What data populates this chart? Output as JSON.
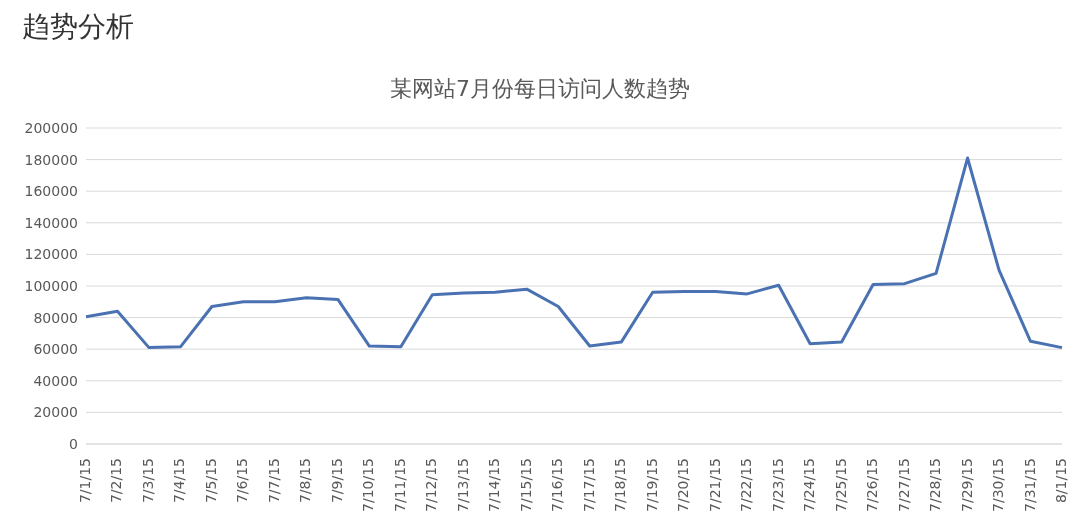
{
  "chart_data": {
    "type": "line",
    "title": "趋势分析",
    "subtitle": "某网站7月份每日访问人数趋势",
    "categories": [
      "7/1/15",
      "7/2/15",
      "7/3/15",
      "7/4/15",
      "7/5/15",
      "7/6/15",
      "7/7/15",
      "7/8/15",
      "7/9/15",
      "7/10/15",
      "7/11/15",
      "7/12/15",
      "7/13/15",
      "7/14/15",
      "7/15/15",
      "7/16/15",
      "7/17/15",
      "7/18/15",
      "7/19/15",
      "7/20/15",
      "7/21/15",
      "7/22/15",
      "7/23/15",
      "7/24/15",
      "7/25/15",
      "7/26/15",
      "7/27/15",
      "7/28/15",
      "7/29/15",
      "7/30/15",
      "7/31/15",
      "8/1/15"
    ],
    "series": [
      {
        "color": "#4a72b2",
        "values": [
          80500,
          84000,
          61000,
          61500,
          87000,
          90000,
          90000,
          92500,
          91500,
          62000,
          61500,
          94500,
          95500,
          96000,
          98000,
          87000,
          62000,
          64500,
          96000,
          96500,
          96500,
          95000,
          100500,
          63500,
          64500,
          101000,
          101500,
          108000,
          181000,
          110000,
          65000,
          61000
        ]
      }
    ],
    "ylim": [
      0,
      200000
    ],
    "yticks": [
      0,
      20000,
      40000,
      60000,
      80000,
      100000,
      120000,
      140000,
      160000,
      180000,
      200000
    ],
    "grid": "y",
    "legend": false
  }
}
